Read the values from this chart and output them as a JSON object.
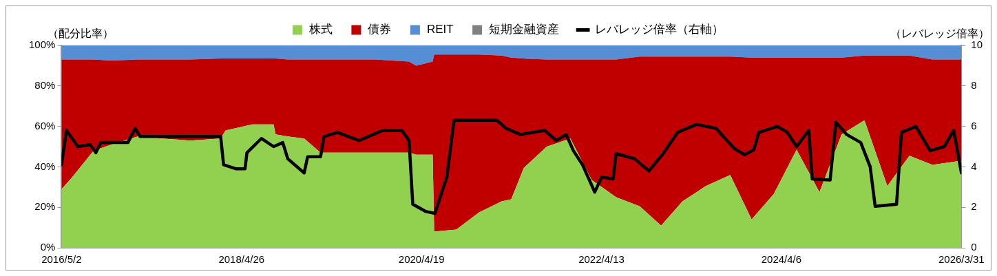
{
  "chart_data": {
    "type": "area",
    "stacked": true,
    "ylabel": "（配分比率）",
    "y2label": "（レバレッジ倍率）",
    "legend": "top",
    "x": [
      "2016-05-02",
      "2016-06-08",
      "2016-09-08",
      "2016-11-19",
      "2017-03-05",
      "2017-06-08",
      "2017-10-01",
      "2018-02-01",
      "2018-02-21",
      "2018-06-08",
      "2018-09-02",
      "2018-09-10",
      "2018-10-29",
      "2019-01-03",
      "2019-03-10",
      "2019-06-24",
      "2019-10-17",
      "2020-02-29",
      "2020-03-29",
      "2020-06-03",
      "2020-06-09",
      "2020-09-06",
      "2020-12-07",
      "2021-03-08",
      "2021-04-15",
      "2021-06-05",
      "2021-09-05",
      "2021-12-09",
      "2022-03-05",
      "2022-06-11",
      "2022-09-14",
      "2022-12-09",
      "2023-03-05",
      "2023-06-07",
      "2023-09-13",
      "2023-12-08",
      "2024-03-06",
      "2024-06-06",
      "2024-09-06",
      "2024-12-04",
      "2025-03-06",
      "2025-06-06",
      "2025-09-03",
      "2025-12-04",
      "2026-03-31"
    ],
    "xlim": [
      "2016-05-02",
      "2026-03-31"
    ],
    "xticks": [
      {
        "value": "2016-05-02",
        "label": "2016/5/2"
      },
      {
        "value": "2018-04-26",
        "label": "2018/4/26"
      },
      {
        "value": "2020-04-19",
        "label": "2020/4/19"
      },
      {
        "value": "2022-04-13",
        "label": "2022/4/13"
      },
      {
        "value": "2024-04-06",
        "label": "2024/4/6"
      },
      {
        "value": "2026-03-31",
        "label": "2026/3/31"
      }
    ],
    "ylim": [
      0,
      100
    ],
    "yticks": [
      {
        "value": 0,
        "label": "0%"
      },
      {
        "value": 20,
        "label": "20%"
      },
      {
        "value": 40,
        "label": "40%"
      },
      {
        "value": 60,
        "label": "60%"
      },
      {
        "value": 80,
        "label": "80%"
      },
      {
        "value": 100,
        "label": "100%"
      }
    ],
    "y2lim": [
      0,
      10
    ],
    "y2ticks": [
      0,
      2,
      4,
      6,
      8,
      10
    ],
    "series": [
      {
        "name": "株式",
        "color": "#92d050",
        "values": [
          29,
          34,
          48,
          51,
          55,
          54,
          53,
          54,
          58,
          61,
          61,
          56,
          55,
          54,
          47,
          47,
          47,
          47,
          46,
          46,
          8,
          9,
          17.5,
          23,
          24,
          39.5,
          50,
          54,
          33.5,
          25,
          20.5,
          11,
          23,
          30.5,
          36,
          14,
          26.5,
          48.5,
          27.5,
          56,
          63,
          30.5,
          45.5,
          41,
          43
        ]
      },
      {
        "name": "債券",
        "color": "#c00000",
        "values": [
          64,
          59,
          45,
          41.5,
          38,
          39,
          40,
          39.5,
          35.5,
          32.5,
          32.5,
          37.5,
          38,
          39,
          46,
          46,
          46,
          45,
          44,
          46,
          87.5,
          86.5,
          78,
          72,
          70,
          54,
          43,
          39,
          59.5,
          68,
          74,
          83.5,
          71.5,
          64,
          58.5,
          80,
          67.5,
          45.5,
          66.5,
          38,
          32,
          64.5,
          49.5,
          52,
          50
        ]
      },
      {
        "name": "REIT",
        "color": "#558ed5",
        "values": [
          7,
          7,
          7,
          7.5,
          7,
          7,
          7,
          6.5,
          6.5,
          6.5,
          6.5,
          6.5,
          7,
          7,
          7,
          7,
          7,
          8,
          10,
          8,
          4.5,
          4.5,
          4.5,
          5,
          6,
          6.5,
          7,
          7,
          7,
          7,
          5.5,
          5.5,
          5.5,
          5.5,
          5.5,
          6,
          6,
          6,
          6,
          6,
          5,
          5,
          5,
          7,
          7
        ]
      },
      {
        "name": "短期金融資産",
        "color": "#808080",
        "values": [
          null,
          null,
          null,
          null,
          null,
          null,
          null,
          null,
          null,
          null,
          null,
          null,
          null,
          null,
          null,
          null,
          null,
          null,
          null,
          null,
          null,
          null,
          null,
          null,
          null,
          null,
          null,
          null,
          null,
          null,
          null,
          null,
          null,
          null,
          null,
          null,
          null,
          null,
          null,
          null,
          null,
          null,
          null,
          null,
          null
        ]
      },
      {
        "name": "レバレッジ倍率（右軸）",
        "type": "line",
        "axis": "y2",
        "color": "#000000",
        "x": [
          "2016-05-02",
          "2016-05-22",
          "2016-07-07",
          "2016-08-25",
          "2016-09-17",
          "2016-10-07",
          "2017-01-24",
          "2017-02-22",
          "2017-03-14",
          "2018-02-01",
          "2018-02-13",
          "2018-04-05",
          "2018-05-10",
          "2018-05-18",
          "2018-07-15",
          "2018-09-02",
          "2018-10-09",
          "2018-10-29",
          "2019-01-03",
          "2019-01-17",
          "2019-03-10",
          "2019-03-24",
          "2019-05-17",
          "2019-08-12",
          "2019-11-15",
          "2020-01-31",
          "2020-02-29",
          "2020-03-15",
          "2020-05-05",
          "2020-06-12",
          "2020-07-30",
          "2020-08-28",
          "2021-02-16",
          "2021-03-26",
          "2021-05-22",
          "2021-08-28",
          "2021-10-13",
          "2021-11-22",
          "2021-12-21",
          "2022-01-27",
          "2022-03-17",
          "2022-04-14",
          "2022-05-30",
          "2022-06-11",
          "2022-08-24",
          "2022-10-21",
          "2022-12-17",
          "2023-02-13",
          "2023-05-01",
          "2023-07-18",
          "2023-09-30",
          "2023-11-10",
          "2023-12-17",
          "2024-01-06",
          "2024-03-21",
          "2024-04-30",
          "2024-06-06",
          "2024-07-25",
          "2024-08-08",
          "2024-10-19",
          "2024-11-11",
          "2024-12-24",
          "2025-02-19",
          "2025-03-29",
          "2025-04-18",
          "2025-07-13",
          "2025-08-02",
          "2025-09-29",
          "2025-11-25",
          "2026-01-21",
          "2026-02-28",
          "2026-03-31"
        ],
        "values": [
          4.1,
          5.8,
          5.0,
          5.1,
          4.7,
          5.2,
          5.2,
          5.9,
          5.5,
          5.5,
          4.1,
          3.9,
          3.9,
          4.7,
          5.4,
          5.0,
          5.2,
          4.4,
          3.7,
          4.5,
          4.5,
          5.5,
          5.7,
          5.3,
          5.8,
          5.8,
          5.3,
          2.15,
          1.8,
          1.7,
          3.5,
          6.3,
          6.3,
          5.9,
          5.6,
          5.8,
          5.3,
          5.6,
          4.8,
          4.1,
          2.75,
          3.5,
          3.4,
          4.65,
          4.4,
          3.8,
          4.65,
          5.7,
          6.1,
          5.9,
          4.9,
          4.6,
          4.85,
          5.7,
          6.0,
          5.7,
          5.0,
          5.8,
          3.4,
          3.35,
          6.2,
          5.6,
          5.2,
          4.0,
          2.05,
          2.15,
          5.7,
          6.0,
          4.8,
          5.0,
          5.8,
          3.7
        ]
      }
    ]
  }
}
